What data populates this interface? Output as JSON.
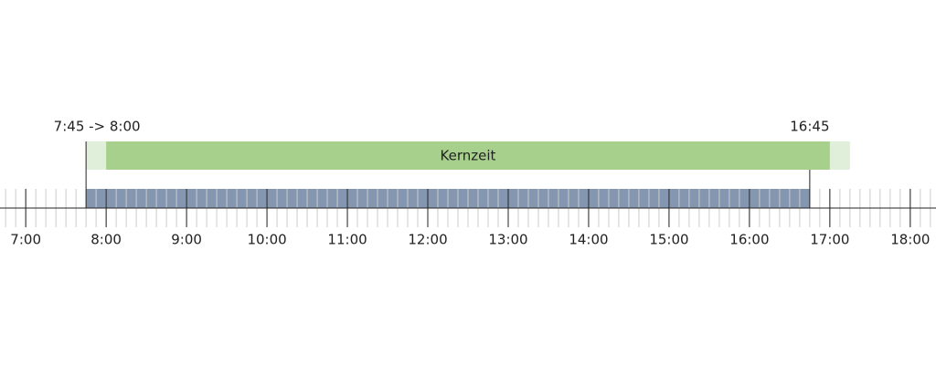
{
  "axis": {
    "xlim": [
      6.68,
      18.32
    ],
    "ticks": [
      {
        "value": 7,
        "label": "7:00"
      },
      {
        "value": 8,
        "label": "8:00"
      },
      {
        "value": 9,
        "label": "9:00"
      },
      {
        "value": 10,
        "label": "10:00"
      },
      {
        "value": 11,
        "label": "11:00"
      },
      {
        "value": 12,
        "label": "12:00"
      },
      {
        "value": 13,
        "label": "13:00"
      },
      {
        "value": 14,
        "label": "14:00"
      },
      {
        "value": 15,
        "label": "15:00"
      },
      {
        "value": 16,
        "label": "16:00"
      },
      {
        "value": 17,
        "label": "17:00"
      },
      {
        "value": 18,
        "label": "18:00"
      }
    ]
  },
  "core_time": {
    "label": "Kernzeit",
    "start": 8,
    "end": 17,
    "buffer_start": 7.75,
    "buffer_end": 17.25
  },
  "work": {
    "start": {
      "value": 7.75,
      "label": "7:45 -> 8:00"
    },
    "end": {
      "value": 16.75,
      "label": "16:45"
    }
  }
}
